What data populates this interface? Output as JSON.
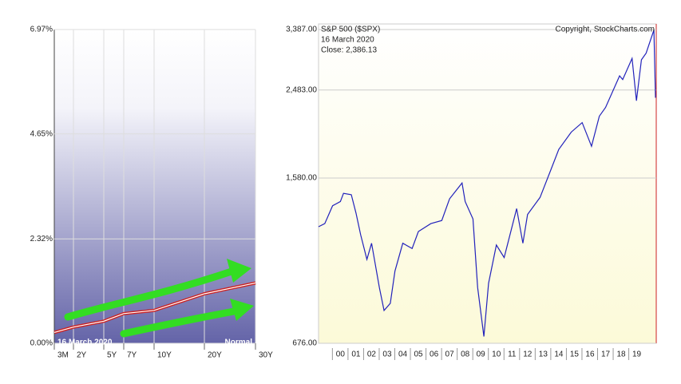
{
  "chart_data": [
    {
      "type": "line",
      "categories": [
        "3M",
        "2Y",
        "5Y",
        "7Y",
        "10Y",
        "20Y",
        "30Y"
      ],
      "values": [
        0.24,
        0.36,
        0.49,
        0.66,
        0.73,
        1.1,
        1.34
      ],
      "color": "#cc2222",
      "ylim": [
        0,
        6.97
      ],
      "yticks": [
        {
          "value": 0,
          "label": "0.00%"
        },
        {
          "value": 2.32,
          "label": "2.32%"
        },
        {
          "value": 4.65,
          "label": "4.65%"
        },
        {
          "value": 6.97,
          "label": "6.97%"
        }
      ],
      "date_label": "16  March 2020",
      "curve_label": "Normal",
      "grid": true
    },
    {
      "type": "line",
      "title": "S&P 500 ($SPX)",
      "source": "Copyright, StockCharts.com",
      "date_label": "16  March 2020",
      "close_label": "Close: 2,386.13",
      "x": [
        1998.6,
        1999.0,
        1999.5,
        2000.0,
        2000.2,
        2000.7,
        2001.0,
        2001.3,
        2001.7,
        2002.0,
        2002.5,
        2002.8,
        2003.2,
        2003.5,
        2004.0,
        2004.6,
        2005.0,
        2005.8,
        2006.5,
        2007.0,
        2007.8,
        2008.0,
        2008.5,
        2008.8,
        2009.2,
        2009.5,
        2010.0,
        2010.5,
        2011.3,
        2011.7,
        2012.0,
        2012.8,
        2013.5,
        2014.0,
        2014.8,
        2015.5,
        2016.1,
        2016.6,
        2017.0,
        2017.9,
        2018.1,
        2018.7,
        2018.98,
        2019.3,
        2019.6,
        2020.1,
        2020.2
      ],
      "values": [
        1230,
        1250,
        1370,
        1400,
        1460,
        1450,
        1320,
        1180,
        1040,
        1130,
        900,
        800,
        830,
        980,
        1130,
        1100,
        1200,
        1250,
        1270,
        1420,
        1540,
        1400,
        1280,
        900,
        700,
        920,
        1120,
        1050,
        1350,
        1130,
        1310,
        1430,
        1650,
        1830,
        2000,
        2100,
        1860,
        2170,
        2270,
        2670,
        2620,
        2920,
        2350,
        2900,
        3000,
        3380,
        2386
      ],
      "color": "#2222bb",
      "log_scale": true,
      "xlim": [
        1998.6,
        2020.25
      ],
      "xticks": [
        {
          "value": 2000,
          "label": "00"
        },
        {
          "value": 2001,
          "label": "01"
        },
        {
          "value": 2002,
          "label": "02"
        },
        {
          "value": 2003,
          "label": "03"
        },
        {
          "value": 2004,
          "label": "04"
        },
        {
          "value": 2005,
          "label": "05"
        },
        {
          "value": 2006,
          "label": "06"
        },
        {
          "value": 2007,
          "label": "07"
        },
        {
          "value": 2008,
          "label": "08"
        },
        {
          "value": 2009,
          "label": "09"
        },
        {
          "value": 2010,
          "label": "10"
        },
        {
          "value": 2011,
          "label": "11"
        },
        {
          "value": 2012,
          "label": "12"
        },
        {
          "value": 2013,
          "label": "13"
        },
        {
          "value": 2014,
          "label": "14"
        },
        {
          "value": 2015,
          "label": "15"
        },
        {
          "value": 2016,
          "label": "16"
        },
        {
          "value": 2017,
          "label": "17"
        },
        {
          "value": 2018,
          "label": "18"
        },
        {
          "value": 2019,
          "label": "19"
        }
      ],
      "ylim": [
        676,
        3387
      ],
      "yticks": [
        {
          "value": 676,
          "label": "676.00"
        },
        {
          "value": 1580,
          "label": "1,580.00"
        },
        {
          "value": 2483,
          "label": "2,483.00"
        },
        {
          "value": 3387,
          "label": "3,387.00"
        }
      ],
      "grid": true
    }
  ]
}
